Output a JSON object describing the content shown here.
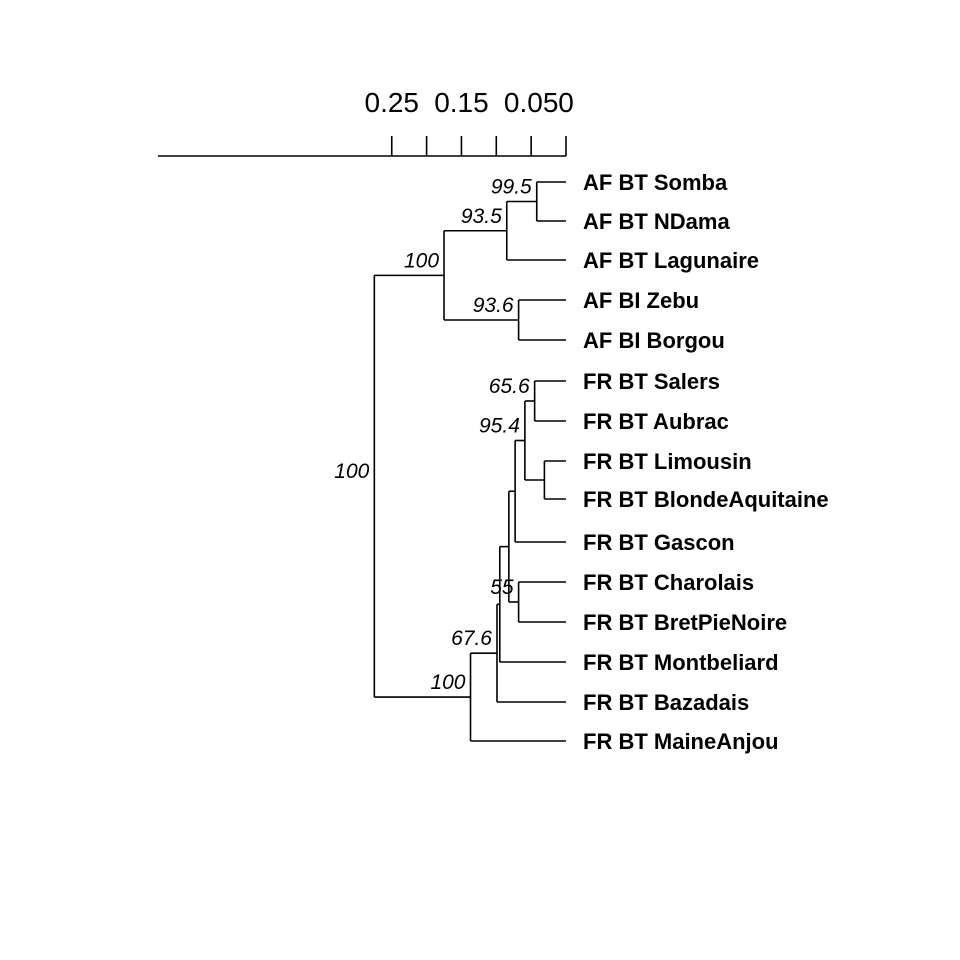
{
  "scale_axis": {
    "ticks": [
      {
        "label": "0.25",
        "value": 0.25
      },
      {
        "label": "0.15",
        "value": 0.15
      },
      {
        "label": "0.05",
        "value": 0.05
      },
      {
        "label": "0",
        "value": 0
      }
    ]
  },
  "leaves": [
    {
      "id": "somba",
      "label": "AF BT Somba"
    },
    {
      "id": "ndama",
      "label": "AF BT NDama"
    },
    {
      "id": "lagunaire",
      "label": "AF BT Lagunaire"
    },
    {
      "id": "zebu",
      "label": "AF BI Zebu"
    },
    {
      "id": "borgou",
      "label": "AF BI Borgou"
    },
    {
      "id": "salers",
      "label": "FR BT Salers"
    },
    {
      "id": "aubrac",
      "label": "FR BT Aubrac"
    },
    {
      "id": "limousin",
      "label": "FR BT Limousin"
    },
    {
      "id": "blonde",
      "label": "FR BT BlondeAquitaine"
    },
    {
      "id": "gascon",
      "label": "FR BT Gascon"
    },
    {
      "id": "charolais",
      "label": "FR BT Charolais"
    },
    {
      "id": "bretpie",
      "label": "FR BT BretPieNoire"
    },
    {
      "id": "montbeliard",
      "label": "FR BT Montbeliard"
    },
    {
      "id": "bazadais",
      "label": "FR BT Bazadais"
    },
    {
      "id": "maineanjou",
      "label": "FR BT MaineAnjou"
    }
  ],
  "nodes": [
    {
      "id": "root",
      "height": 0.275,
      "children": [
        "n_af",
        "n_fr"
      ],
      "support": "100"
    },
    {
      "id": "n_af",
      "height": 0.175,
      "children": [
        "n_bt",
        "n_bi"
      ],
      "support": "100"
    },
    {
      "id": "n_bt",
      "height": 0.085,
      "children": [
        "n_sn",
        "lagunaire"
      ],
      "support": "93.5"
    },
    {
      "id": "n_sn",
      "height": 0.042,
      "children": [
        "somba",
        "ndama"
      ],
      "support": "99.5"
    },
    {
      "id": "n_bi",
      "height": 0.068,
      "children": [
        "zebu",
        "borgou"
      ],
      "support": "93.6"
    },
    {
      "id": "n_fr",
      "height": 0.137,
      "children": [
        "n_c",
        "maineanjou"
      ],
      "support": "100"
    },
    {
      "id": "n_c",
      "height": 0.099,
      "children": [
        "n_d",
        "bazadais"
      ],
      "support": "67.6"
    },
    {
      "id": "n_d",
      "height": 0.095,
      "children": [
        "n_e",
        "montbeliard"
      ],
      "support": ""
    },
    {
      "id": "n_e",
      "height": 0.082,
      "children": [
        "n_f",
        "n_cb"
      ],
      "support": ""
    },
    {
      "id": "n_f",
      "height": 0.073,
      "children": [
        "n_g",
        "gascon"
      ],
      "support": ""
    },
    {
      "id": "n_g",
      "height": 0.059,
      "children": [
        "n_sa",
        "n_lb"
      ],
      "support": "95.4"
    },
    {
      "id": "n_sa",
      "height": 0.045,
      "children": [
        "salers",
        "aubrac"
      ],
      "support": "65.6"
    },
    {
      "id": "n_lb",
      "height": 0.031,
      "children": [
        "limousin",
        "blonde"
      ],
      "support": ""
    },
    {
      "id": "n_cb",
      "height": 0.068,
      "children": [
        "charolais",
        "bretpie"
      ],
      "support": "55"
    }
  ]
}
